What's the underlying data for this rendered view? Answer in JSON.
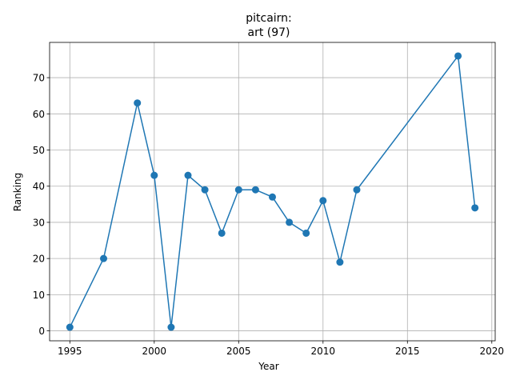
{
  "chart_data": {
    "type": "line",
    "title_line1": "pitcairn:",
    "title_line2": "art (97)",
    "xlabel": "Year",
    "ylabel": "Ranking",
    "xlim": [
      1993.8,
      2020.2
    ],
    "ylim": [
      -2.75,
      79.75
    ],
    "xticks": [
      1995,
      2000,
      2005,
      2010,
      2015,
      2020
    ],
    "yticks": [
      0,
      10,
      20,
      30,
      40,
      50,
      60,
      70
    ],
    "grid": true,
    "color": "#1f77b4",
    "series": [
      {
        "x": [
          1995,
          1997,
          1999,
          2000,
          2001,
          2002,
          2003,
          2004,
          2005,
          2006,
          2007,
          2008,
          2009,
          2010,
          2011,
          2012,
          2018,
          2019
        ],
        "y": [
          1,
          20,
          63,
          43,
          1,
          43,
          39,
          27,
          39,
          39,
          37,
          30,
          27,
          36,
          19,
          39,
          76,
          34
        ]
      }
    ]
  }
}
